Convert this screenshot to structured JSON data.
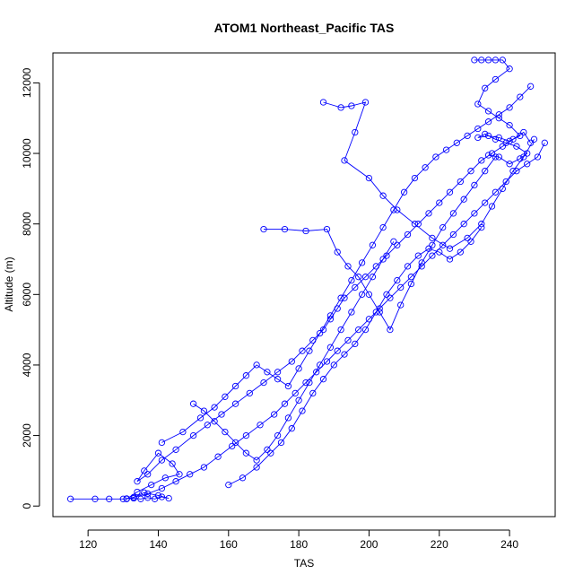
{
  "chart_data": {
    "type": "line",
    "title": "ATOM1 Northeast_Pacific TAS",
    "xlabel": "TAS",
    "ylabel": "Altitude (m)",
    "xlim": [
      110,
      253
    ],
    "ylim": [
      -300,
      12850
    ],
    "xticks": [
      120,
      140,
      160,
      180,
      200,
      220,
      240
    ],
    "yticks": [
      0,
      2000,
      4000,
      6000,
      8000,
      10000,
      12000
    ],
    "grid": false,
    "legend": "none",
    "marker": "open-circle",
    "color": "#0000FF",
    "series": [
      {
        "x": [
          115,
          122,
          126,
          130,
          131,
          133,
          135,
          137,
          139,
          141,
          143,
          140,
          136,
          133,
          131,
          134,
          138,
          142,
          146,
          144,
          140,
          136,
          134,
          137,
          141,
          145,
          150,
          154,
          158,
          162,
          166,
          170,
          174,
          178,
          181,
          184,
          187,
          189,
          191,
          193,
          196,
          199,
          202,
          205,
          208,
          211,
          214,
          217,
          220,
          223,
          226,
          229,
          232,
          235,
          238,
          241,
          244,
          246
        ],
        "y": [
          200,
          200,
          200,
          200,
          210,
          220,
          200,
          240,
          200,
          260,
          220,
          300,
          380,
          250,
          200,
          400,
          600,
          800,
          900,
          1200,
          1500,
          1000,
          700,
          900,
          1300,
          1600,
          2000,
          2300,
          2600,
          2900,
          3200,
          3500,
          3800,
          4100,
          4400,
          4700,
          5000,
          5300,
          5600,
          5900,
          6200,
          6500,
          6800,
          7100,
          7400,
          7700,
          8000,
          8300,
          8600,
          8900,
          9200,
          9500,
          9800,
          10000,
          10200,
          10400,
          10600,
          10300
        ]
      },
      {
        "x": [
          133,
          137,
          141,
          145,
          149,
          153,
          157,
          161,
          165,
          169,
          173,
          176,
          179,
          182,
          185,
          188,
          191,
          194,
          197,
          200,
          203,
          206,
          209,
          212,
          215,
          218,
          221,
          224,
          227,
          230,
          233,
          236,
          239,
          242,
          245,
          248,
          250
        ],
        "y": [
          250,
          350,
          500,
          700,
          900,
          1100,
          1400,
          1700,
          2000,
          2300,
          2600,
          2900,
          3200,
          3500,
          3800,
          4100,
          4400,
          4700,
          5000,
          5300,
          5600,
          5900,
          6200,
          6500,
          6800,
          7100,
          7400,
          7700,
          8000,
          8300,
          8600,
          8900,
          9200,
          9500,
          9700,
          9900,
          10300
        ]
      },
      {
        "x": [
          141,
          147,
          152,
          156,
          159,
          162,
          165,
          168,
          171,
          174,
          177,
          180,
          183,
          186,
          189,
          192,
          195,
          198,
          201,
          204,
          207,
          210,
          213,
          216,
          219,
          222,
          225,
          228,
          231,
          234,
          237,
          240,
          243,
          246
        ],
        "y": [
          1800,
          2100,
          2500,
          2800,
          3100,
          3400,
          3700,
          4000,
          3800,
          3600,
          3400,
          3900,
          4400,
          4900,
          5400,
          5900,
          6400,
          6900,
          7400,
          7900,
          8400,
          8900,
          9300,
          9600,
          9900,
          10100,
          10300,
          10500,
          10700,
          10900,
          11100,
          11300,
          11600,
          11900
        ]
      },
      {
        "x": [
          170,
          176,
          182,
          188,
          191,
          194,
          197,
          200,
          203,
          206,
          209,
          212,
          215,
          218,
          221,
          224,
          227,
          230,
          233,
          236
        ],
        "y": [
          7850,
          7850,
          7800,
          7850,
          7200,
          6800,
          6500,
          6000,
          5500,
          5000,
          5700,
          6300,
          6900,
          7400,
          7900,
          8300,
          8700,
          9100,
          9500,
          9900
        ]
      },
      {
        "x": [
          187,
          192,
          195,
          199,
          196,
          193,
          200,
          204,
          208,
          213,
          218,
          223,
          228,
          232,
          235,
          238,
          241,
          244,
          247
        ],
        "y": [
          11450,
          11300,
          11350,
          11450,
          10600,
          9800,
          9300,
          8800,
          8400,
          8000,
          7600,
          7300,
          7600,
          8000,
          8500,
          9000,
          9500,
          9900,
          10400
        ]
      },
      {
        "x": [
          230,
          232,
          234,
          236,
          238,
          240,
          236,
          233,
          231,
          234,
          237,
          240,
          243,
          240,
          237,
          234,
          231,
          233,
          236,
          239,
          242,
          245,
          243,
          240,
          237,
          234
        ],
        "y": [
          12650,
          12650,
          12650,
          12650,
          12650,
          12400,
          12100,
          11850,
          11400,
          11200,
          11000,
          10800,
          10500,
          10350,
          10450,
          10500,
          10450,
          10550,
          10400,
          10300,
          10200,
          10000,
          9850,
          9700,
          9900,
          9950
        ]
      },
      {
        "x": [
          160,
          164,
          168,
          172,
          175,
          178,
          181,
          184,
          187,
          190,
          193,
          196,
          199,
          202,
          205,
          208,
          211,
          214,
          217,
          220,
          223,
          226,
          229,
          232
        ],
        "y": [
          600,
          800,
          1100,
          1500,
          1800,
          2200,
          2700,
          3200,
          3600,
          4000,
          4300,
          4600,
          5000,
          5500,
          6000,
          6400,
          6800,
          7100,
          7300,
          7200,
          7000,
          7200,
          7500,
          7900
        ]
      },
      {
        "x": [
          150,
          153,
          156,
          159,
          162,
          165,
          168,
          171,
          174,
          177,
          180,
          183,
          186,
          189,
          192,
          195,
          198,
          201,
          204,
          207
        ],
        "y": [
          2900,
          2700,
          2400,
          2100,
          1800,
          1500,
          1300,
          1600,
          2000,
          2500,
          3000,
          3500,
          4000,
          4500,
          5000,
          5500,
          6000,
          6500,
          7000,
          7500
        ]
      }
    ]
  }
}
